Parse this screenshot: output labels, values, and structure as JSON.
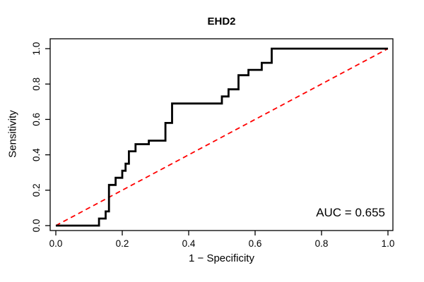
{
  "figure": {
    "title": "EHD2",
    "x_axis_label": "1 − Specificity",
    "y_axis_label": "Sensitivity",
    "auc_label": "AUC = 0.655"
  },
  "colors": {
    "curve": "#000000",
    "diagonal": "#ff0000",
    "background": "#ffffff",
    "text": "#000000"
  },
  "chart_data": {
    "type": "line",
    "subtype": "roc-step-curve",
    "title": "EHD2",
    "xlabel": "1 − Specificity",
    "ylabel": "Sensitivity",
    "xlim": [
      0,
      1
    ],
    "ylim": [
      0,
      1
    ],
    "grid": false,
    "legend": "none",
    "auc": 0.655,
    "x_ticks": [
      0.0,
      0.2,
      0.4,
      0.6,
      0.8,
      1.0
    ],
    "y_ticks": [
      0.0,
      0.2,
      0.4,
      0.6,
      0.8,
      1.0
    ],
    "x_tick_labels": [
      "0.0",
      "0.2",
      "0.4",
      "0.6",
      "0.8",
      "1.0"
    ],
    "y_tick_labels": [
      "0.0",
      "0.2",
      "0.4",
      "0.6",
      "0.8",
      "1.0"
    ],
    "annotations": [
      {
        "text": "AUC = 0.655",
        "x": 0.87,
        "y": 0.07
      }
    ],
    "series": [
      {
        "name": "ROC curve (EHD2)",
        "color": "#000000",
        "style": "solid",
        "points": [
          [
            0.0,
            0.0
          ],
          [
            0.13,
            0.0
          ],
          [
            0.13,
            0.04
          ],
          [
            0.15,
            0.04
          ],
          [
            0.15,
            0.08
          ],
          [
            0.16,
            0.08
          ],
          [
            0.16,
            0.23
          ],
          [
            0.18,
            0.23
          ],
          [
            0.18,
            0.27
          ],
          [
            0.2,
            0.27
          ],
          [
            0.2,
            0.31
          ],
          [
            0.21,
            0.31
          ],
          [
            0.21,
            0.35
          ],
          [
            0.22,
            0.35
          ],
          [
            0.22,
            0.42
          ],
          [
            0.24,
            0.42
          ],
          [
            0.24,
            0.46
          ],
          [
            0.28,
            0.46
          ],
          [
            0.28,
            0.48
          ],
          [
            0.33,
            0.48
          ],
          [
            0.33,
            0.58
          ],
          [
            0.35,
            0.58
          ],
          [
            0.35,
            0.69
          ],
          [
            0.5,
            0.69
          ],
          [
            0.5,
            0.73
          ],
          [
            0.52,
            0.73
          ],
          [
            0.52,
            0.77
          ],
          [
            0.55,
            0.77
          ],
          [
            0.55,
            0.85
          ],
          [
            0.58,
            0.85
          ],
          [
            0.58,
            0.88
          ],
          [
            0.62,
            0.88
          ],
          [
            0.62,
            0.92
          ],
          [
            0.65,
            0.92
          ],
          [
            0.65,
            1.0
          ],
          [
            1.0,
            1.0
          ]
        ]
      },
      {
        "name": "Chance diagonal",
        "color": "#ff0000",
        "style": "dashed",
        "points": [
          [
            0,
            0
          ],
          [
            1,
            1
          ]
        ]
      }
    ]
  }
}
